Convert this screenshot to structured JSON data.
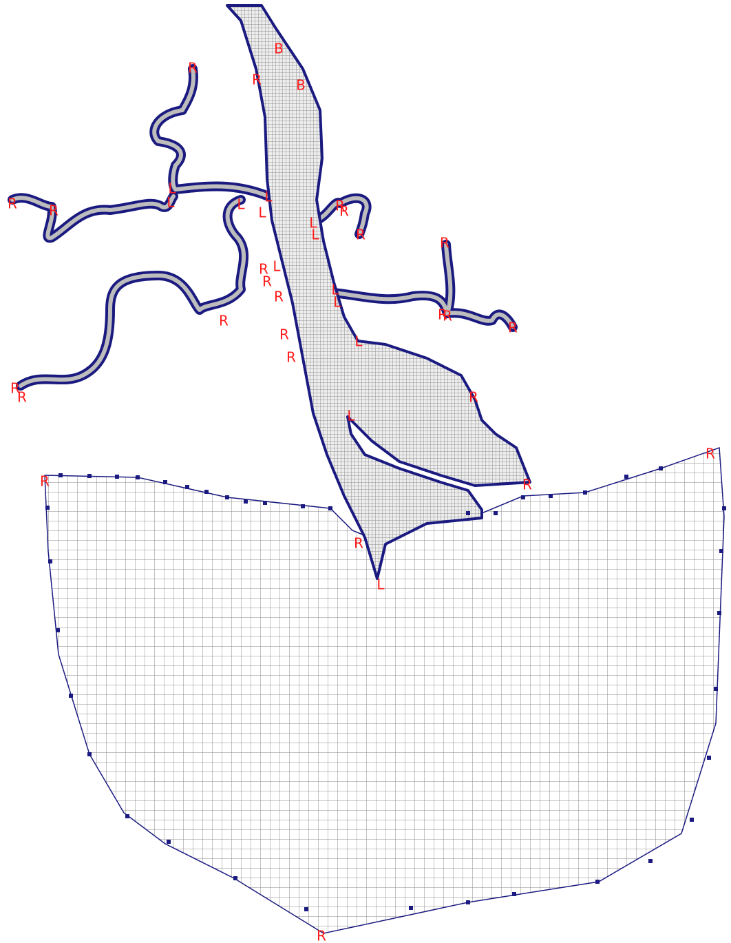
{
  "labels": [
    "B",
    "B",
    "R",
    "R",
    "L",
    "L",
    "L",
    "L",
    "L",
    "R",
    "R",
    "R",
    "R",
    "L",
    "L",
    "R",
    "R",
    "R",
    "L",
    "R",
    "R",
    "L",
    "L",
    "R",
    "R",
    "R",
    "R",
    "R",
    "R",
    "L",
    "R",
    "R",
    "R",
    "L",
    "R",
    "R",
    "R",
    "R",
    "L",
    "R"
  ]
}
